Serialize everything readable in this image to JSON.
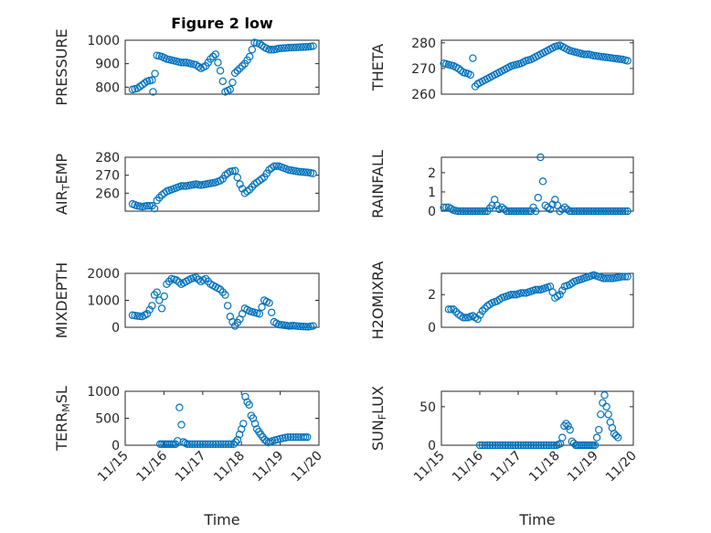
{
  "title": "Figure 2 low",
  "colors": {
    "marker": "#0072BD",
    "axis": "#262626",
    "grid": "#b8b8b8"
  },
  "chart_data": [
    {
      "type": "scatter",
      "title": "Figure 2 low",
      "ylabel": "PRESSURE",
      "xlabel": "",
      "ylim": [
        770,
        1000
      ],
      "yticks": [
        800,
        900,
        1000
      ],
      "xticklabels_shown": false,
      "grid": true,
      "x": [
        16.0,
        16.1,
        16.2,
        16.3,
        16.4,
        16.42,
        16.5,
        16.6,
        16.7,
        16.8,
        16.9,
        17.0,
        17.1,
        17.2,
        17.3,
        17.4,
        17.5,
        17.6,
        17.7,
        17.8,
        17.9,
        18.0,
        18.05,
        18.1,
        18.2,
        18.3,
        18.4,
        18.5,
        18.6,
        18.7,
        18.8,
        18.9,
        19.0,
        19.2,
        19.4,
        19.6,
        19.7
      ],
      "y": [
        790,
        795,
        810,
        825,
        830,
        780,
        935,
        930,
        920,
        915,
        910,
        905,
        905,
        900,
        895,
        880,
        890,
        920,
        940,
        870,
        780,
        790,
        820,
        860,
        880,
        900,
        930,
        990,
        985,
        970,
        960,
        960,
        965,
        968,
        970,
        972,
        975
      ]
    },
    {
      "type": "scatter",
      "ylabel": "THETA",
      "xlabel": "",
      "ylim": [
        260,
        281
      ],
      "yticks": [
        260,
        270,
        280
      ],
      "xticklabels_shown": false,
      "grid": true,
      "x": [
        15.9,
        16.0,
        16.1,
        16.2,
        16.3,
        16.4,
        16.45,
        16.5,
        16.55,
        16.6,
        16.7,
        16.8,
        16.9,
        17.0,
        17.1,
        17.2,
        17.3,
        17.4,
        17.5,
        17.6,
        17.7,
        17.8,
        17.9,
        18.0,
        18.1,
        18.2,
        18.3,
        18.4,
        18.5,
        18.6,
        18.7,
        18.8,
        18.9,
        19.0,
        19.2,
        19.4,
        19.6,
        19.7
      ],
      "y": [
        272,
        271.5,
        271,
        270,
        268.5,
        268,
        267.5,
        274,
        263,
        264,
        265,
        266,
        267,
        268,
        269,
        270,
        271,
        271.5,
        272,
        273,
        273.5,
        274.5,
        275.5,
        276.5,
        277.5,
        278.5,
        279,
        278,
        277,
        276.5,
        276,
        275.5,
        275.5,
        275,
        274.5,
        274,
        273.5,
        273
      ]
    },
    {
      "type": "scatter",
      "ylabel": "AIR_TEMP",
      "xlabel": "",
      "ylim": [
        250,
        280
      ],
      "yticks": [
        260,
        270,
        280
      ],
      "xticklabels_shown": false,
      "grid": true,
      "x": [
        16.0,
        16.1,
        16.2,
        16.3,
        16.4,
        16.45,
        16.5,
        16.6,
        16.7,
        16.8,
        16.9,
        17.0,
        17.1,
        17.2,
        17.3,
        17.4,
        17.5,
        17.6,
        17.7,
        17.8,
        17.85,
        17.9,
        18.0,
        18.1,
        18.2,
        18.3,
        18.4,
        18.5,
        18.6,
        18.7,
        18.8,
        18.9,
        19.0,
        19.2,
        19.4,
        19.6,
        19.7
      ],
      "y": [
        254,
        253,
        252.5,
        253,
        253,
        251.5,
        256,
        259,
        261,
        262,
        263,
        264,
        264,
        264.5,
        265,
        264.5,
        265,
        265.5,
        266,
        267,
        268,
        270,
        272,
        272.5,
        265,
        260,
        262,
        265,
        267,
        269,
        273,
        275,
        275,
        273,
        272,
        271.5,
        271
      ]
    },
    {
      "type": "scatter",
      "ylabel": "RAINFALL",
      "xlabel": "",
      "ylim": [
        0,
        2.8
      ],
      "yticks": [
        0,
        1,
        2
      ],
      "xticklabels_shown": false,
      "grid": true,
      "x": [
        15.9,
        16.0,
        16.1,
        16.2,
        16.3,
        16.4,
        16.5,
        16.6,
        16.7,
        16.8,
        16.9,
        16.95,
        17.0,
        17.05,
        17.1,
        17.2,
        17.3,
        17.4,
        17.5,
        17.6,
        17.7,
        17.75,
        17.8,
        17.85,
        17.9,
        18.0,
        18.1,
        18.2,
        18.3,
        18.4,
        18.5,
        18.6,
        18.8,
        19.0,
        19.2,
        19.4,
        19.6,
        19.7
      ],
      "y": [
        0.2,
        0.2,
        0.05,
        0,
        0,
        0,
        0,
        0,
        0,
        0,
        0.3,
        0.6,
        0.3,
        0.1,
        0.2,
        0,
        0,
        0,
        0,
        0,
        0,
        0.2,
        0,
        0.7,
        2.8,
        0.3,
        0.1,
        0.6,
        0,
        0.2,
        0,
        0,
        0,
        0,
        0,
        0,
        0,
        0
      ]
    },
    {
      "type": "scatter",
      "ylabel": "MIXDEPTH",
      "xlabel": "",
      "ylim": [
        0,
        2000
      ],
      "yticks": [
        0,
        1000,
        2000
      ],
      "xticklabels_shown": false,
      "grid": true,
      "x": [
        16.0,
        16.1,
        16.2,
        16.3,
        16.4,
        16.45,
        16.5,
        16.6,
        16.7,
        16.8,
        16.9,
        17.0,
        17.1,
        17.2,
        17.3,
        17.4,
        17.5,
        17.6,
        17.7,
        17.8,
        17.9,
        18.0,
        18.05,
        18.1,
        18.2,
        18.3,
        18.4,
        18.5,
        18.6,
        18.7,
        18.8,
        18.9,
        19.0,
        19.1,
        19.2,
        19.3,
        19.4,
        19.5,
        19.6,
        19.7
      ],
      "y": [
        450,
        420,
        400,
        500,
        800,
        1200,
        1300,
        700,
        1600,
        1800,
        1750,
        1600,
        1700,
        1800,
        1850,
        1700,
        1800,
        1600,
        1500,
        1400,
        1200,
        400,
        200,
        50,
        300,
        700,
        600,
        550,
        500,
        1000,
        900,
        200,
        100,
        80,
        50,
        60,
        40,
        30,
        20,
        50
      ]
    },
    {
      "type": "scatter",
      "ylabel": "H2OMIXRA",
      "xlabel": "",
      "ylim": [
        0,
        3.3
      ],
      "yticks": [
        0,
        2
      ],
      "xticklabels_shown": false,
      "grid": true,
      "x": [
        16.0,
        16.1,
        16.2,
        16.3,
        16.4,
        16.5,
        16.6,
        16.7,
        16.8,
        16.9,
        17.0,
        17.1,
        17.2,
        17.3,
        17.4,
        17.5,
        17.6,
        17.7,
        17.8,
        17.9,
        18.0,
        18.1,
        18.2,
        18.3,
        18.4,
        18.5,
        18.6,
        18.7,
        18.8,
        18.9,
        19.0,
        19.2,
        19.4,
        19.6,
        19.7
      ],
      "y": [
        1.1,
        1.1,
        0.8,
        0.6,
        0.6,
        0.7,
        0.5,
        1.0,
        1.3,
        1.5,
        1.6,
        1.8,
        1.9,
        2.0,
        2.0,
        2.1,
        2.1,
        2.2,
        2.3,
        2.3,
        2.4,
        2.5,
        1.8,
        2.0,
        2.5,
        2.6,
        2.8,
        2.9,
        3.0,
        3.1,
        3.2,
        3.0,
        3.0,
        3.1,
        3.1
      ]
    },
    {
      "type": "scatter",
      "ylabel": "TERR_MSL",
      "xlabel": "Time",
      "ylim": [
        0,
        1000
      ],
      "yticks": [
        0,
        500,
        1000
      ],
      "xlim": [
        15,
        20
      ],
      "xticks": [
        15,
        16,
        17,
        18,
        19,
        20
      ],
      "xticklabels": [
        "11/15",
        "11/16",
        "11/17",
        "11/18",
        "11/19",
        "11/20"
      ],
      "grid": true,
      "x": [
        15.9,
        16.0,
        16.1,
        16.2,
        16.3,
        16.35,
        16.4,
        16.5,
        16.6,
        16.8,
        17.0,
        17.2,
        17.4,
        17.6,
        17.8,
        17.9,
        18.0,
        18.05,
        18.1,
        18.15,
        18.2,
        18.25,
        18.3,
        18.35,
        18.4,
        18.5,
        18.6,
        18.7,
        18.8,
        19.0,
        19.2,
        19.4,
        19.6,
        19.7
      ],
      "y": [
        20,
        20,
        20,
        20,
        20,
        80,
        700,
        60,
        20,
        20,
        20,
        20,
        20,
        20,
        20,
        100,
        300,
        400,
        900,
        800,
        750,
        550,
        500,
        400,
        300,
        200,
        100,
        50,
        80,
        120,
        150,
        150,
        150,
        150
      ]
    },
    {
      "type": "scatter",
      "ylabel": "SUN_FLUX",
      "xlabel": "Time",
      "ylim": [
        0,
        70
      ],
      "yticks": [
        0,
        50
      ],
      "xlim": [
        15,
        20
      ],
      "xticks": [
        15,
        16,
        17,
        18,
        19,
        20
      ],
      "xticklabels": [
        "11/15",
        "11/16",
        "11/17",
        "11/18",
        "11/19",
        "11/20"
      ],
      "grid": true,
      "x": [
        16.0,
        16.2,
        16.4,
        16.6,
        16.8,
        17.0,
        17.2,
        17.4,
        17.6,
        17.8,
        18.0,
        18.1,
        18.15,
        18.2,
        18.25,
        18.3,
        18.35,
        18.4,
        18.5,
        18.6,
        18.7,
        18.8,
        18.9,
        19.0,
        19.05,
        19.1,
        19.15,
        19.2,
        19.25,
        19.3,
        19.35,
        19.4,
        19.5,
        19.6
      ],
      "y": [
        0,
        0,
        0,
        0,
        0,
        0,
        0,
        0,
        0,
        0,
        0,
        2,
        10,
        25,
        28,
        25,
        20,
        5,
        0,
        0,
        0,
        0,
        0,
        0,
        10,
        20,
        40,
        55,
        65,
        50,
        40,
        30,
        15,
        10
      ]
    }
  ]
}
